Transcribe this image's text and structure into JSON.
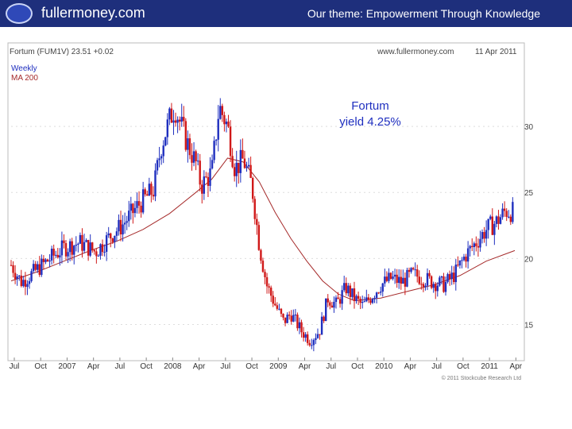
{
  "header": {
    "brand": "fullermoney.com",
    "theme": "Our theme: Empowerment Through Knowledge",
    "logo_icon": "swirl-globe-icon",
    "bar_color": "#1e2f7c"
  },
  "chart_data": {
    "type": "candlestick",
    "title": "Fortum (FUM1V) 23.51 +0.02",
    "source": "www.fullermoney.com",
    "date_label": "11 Apr 2011",
    "legend": [
      "Weekly",
      "MA 200"
    ],
    "annotation": "Fortum\nyield 4.25%",
    "copyright": "© 2011 Stockcube Research Ltd",
    "y_ticks": [
      15,
      20,
      25,
      30
    ],
    "ylim": [
      12.5,
      35
    ],
    "x_ticks": [
      "Jul",
      "Oct",
      "2007",
      "Apr",
      "Jul",
      "Oct",
      "2008",
      "Apr",
      "Jul",
      "Oct",
      "2009",
      "Apr",
      "Jul",
      "Oct",
      "2010",
      "Apr",
      "Jul",
      "Oct",
      "2011",
      "Apr"
    ],
    "up_color": "#1f2fbf",
    "down_color": "#d01818",
    "ma_color": "#a52a2a",
    "price_path": [
      [
        2006.5,
        19.5
      ],
      [
        2006.6,
        18.2
      ],
      [
        2006.75,
        19.2
      ],
      [
        2006.9,
        20.2
      ],
      [
        2007.0,
        20.8
      ],
      [
        2007.15,
        21.2
      ],
      [
        2007.3,
        20.5
      ],
      [
        2007.45,
        21.8
      ],
      [
        2007.55,
        22.5
      ],
      [
        2007.7,
        24.0
      ],
      [
        2007.85,
        25.2
      ],
      [
        2007.92,
        28.5
      ],
      [
        2008.0,
        30.5
      ],
      [
        2008.05,
        31.5
      ],
      [
        2008.12,
        29.8
      ],
      [
        2008.18,
        28.5
      ],
      [
        2008.25,
        27.2
      ],
      [
        2008.3,
        25.5
      ],
      [
        2008.4,
        26.5
      ],
      [
        2008.47,
        31.5
      ],
      [
        2008.55,
        30.0
      ],
      [
        2008.62,
        26.8
      ],
      [
        2008.7,
        27.5
      ],
      [
        2008.78,
        25.5
      ],
      [
        2008.85,
        21.0
      ],
      [
        2008.92,
        18.0
      ],
      [
        2009.0,
        16.5
      ],
      [
        2009.08,
        15.2
      ],
      [
        2009.15,
        15.8
      ],
      [
        2009.25,
        14.5
      ],
      [
        2009.33,
        13.8
      ],
      [
        2009.42,
        14.5
      ],
      [
        2009.5,
        17.0
      ],
      [
        2009.58,
        16.5
      ],
      [
        2009.67,
        17.8
      ],
      [
        2009.75,
        17.0
      ],
      [
        2009.83,
        16.4
      ],
      [
        2009.92,
        17.2
      ],
      [
        2010.0,
        18.0
      ],
      [
        2010.1,
        18.5
      ],
      [
        2010.2,
        18.2
      ],
      [
        2010.3,
        18.8
      ],
      [
        2010.4,
        18.5
      ],
      [
        2010.5,
        18.2
      ],
      [
        2010.6,
        18.0
      ],
      [
        2010.7,
        18.8
      ],
      [
        2010.8,
        20.2
      ],
      [
        2010.9,
        21.2
      ],
      [
        2011.0,
        22.2
      ],
      [
        2011.1,
        22.8
      ],
      [
        2011.18,
        23.6
      ],
      [
        2011.27,
        23.5
      ]
    ],
    "ma_200": [
      [
        2006.5,
        18.3
      ],
      [
        2006.75,
        19.0
      ],
      [
        2007.0,
        19.8
      ],
      [
        2007.25,
        20.6
      ],
      [
        2007.5,
        21.3
      ],
      [
        2007.75,
        22.2
      ],
      [
        2008.0,
        23.4
      ],
      [
        2008.25,
        25.0
      ],
      [
        2008.4,
        26.0
      ],
      [
        2008.55,
        27.6
      ],
      [
        2008.7,
        27.3
      ],
      [
        2008.85,
        25.8
      ],
      [
        2009.0,
        23.5
      ],
      [
        2009.15,
        21.5
      ],
      [
        2009.3,
        19.8
      ],
      [
        2009.45,
        18.3
      ],
      [
        2009.6,
        17.3
      ],
      [
        2009.75,
        16.8
      ],
      [
        2010.0,
        17.0
      ],
      [
        2010.25,
        17.5
      ],
      [
        2010.5,
        18.0
      ],
      [
        2010.75,
        18.7
      ],
      [
        2011.0,
        19.8
      ],
      [
        2011.27,
        20.6
      ]
    ]
  }
}
